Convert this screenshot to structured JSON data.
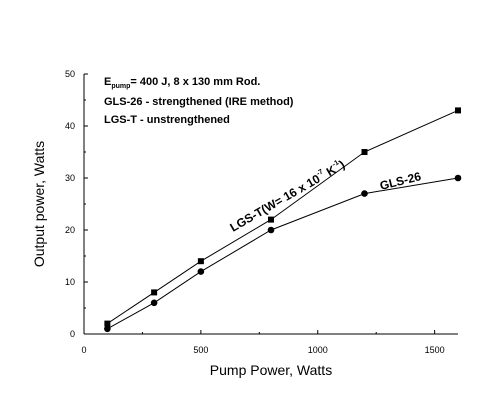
{
  "chart_data": {
    "type": "line",
    "xlabel": "Pump Power, Watts",
    "ylabel": "Output power, Watts",
    "xlim": [
      0,
      1600
    ],
    "ylim": [
      0,
      50
    ],
    "x_ticks": [
      0,
      500,
      1000,
      1500
    ],
    "y_ticks": [
      0,
      10,
      20,
      30,
      40,
      50
    ],
    "grid": false,
    "annotations": {
      "line1_prefix": "E",
      "line1_sub": "pump",
      "line1_rest": "= 400 J, 8 x 130 mm Rod.",
      "line2": "GLS-26 - strengthened (IRE method)",
      "line3": "LGS-T  - unstrengthened"
    },
    "series": [
      {
        "name": "LGS-T",
        "label_main": "LGS-T(W= 16 x 10",
        "label_sup": "-7",
        "label_k": " K",
        "label_ksup": "-1",
        "label_close": ")",
        "marker": "square",
        "x": [
          100,
          300,
          500,
          800,
          1200,
          1600
        ],
        "y": [
          2,
          8,
          14,
          22,
          35,
          43
        ]
      },
      {
        "name": "GLS-26",
        "label_main": "GLS-26",
        "marker": "circle",
        "x": [
          100,
          300,
          500,
          800,
          1200,
          1600
        ],
        "y": [
          1,
          6,
          12,
          20,
          27,
          30
        ]
      }
    ]
  }
}
